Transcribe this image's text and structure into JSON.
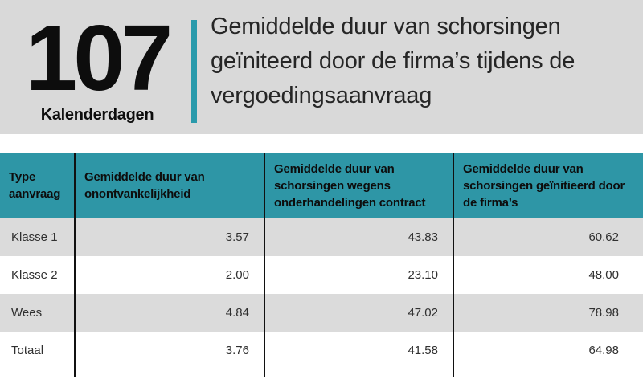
{
  "banner": {
    "stat_value": "107",
    "stat_label": "Kalenderdagen",
    "title": "Gemiddelde duur van schorsingen geïniteerd door de firma’s tijdens de vergoedingsaanvraag"
  },
  "colors": {
    "teal_accent": "#2a9aab",
    "header_teal": "#2e96a6",
    "banner_gray": "#d9d9d9",
    "row_gray": "#dbdbdb",
    "divider_black": "#111111",
    "text_dark": "#0d0d0d"
  },
  "table": {
    "columns": [
      "Type aanvraag",
      "Gemiddelde duur van onontvankelijkheid",
      "Gemiddelde duur van schorsingen wegens onderhandelingen contract",
      "Gemiddelde duur van schorsingen geïnitieerd door de firma’s"
    ],
    "rows": [
      {
        "label": "Klasse 1",
        "values": [
          "3.57",
          "43.83",
          "60.62"
        ]
      },
      {
        "label": "Klasse 2",
        "values": [
          "2.00",
          "23.10",
          "48.00"
        ]
      },
      {
        "label": "Wees",
        "values": [
          "4.84",
          "47.02",
          "78.98"
        ]
      },
      {
        "label": "Totaal",
        "values": [
          "3.76",
          "41.58",
          "64.98"
        ]
      }
    ]
  },
  "chart_data": {
    "type": "table",
    "title": "Gemiddelde duur van schorsingen geïniteerd door de firma’s tijdens de vergoedingsaanvraag",
    "stat": {
      "value": 107,
      "label": "Kalenderdagen"
    },
    "columns": [
      "Type aanvraag",
      "Gemiddelde duur van onontvankelijkheid",
      "Gemiddelde duur van schorsingen wegens onderhandelingen contract",
      "Gemiddelde duur van schorsingen geïnitieerd door de firma’s"
    ],
    "rows": [
      [
        "Klasse 1",
        3.57,
        43.83,
        60.62
      ],
      [
        "Klasse 2",
        2.0,
        23.1,
        48.0
      ],
      [
        "Wees",
        4.84,
        47.02,
        78.98
      ],
      [
        "Totaal",
        3.76,
        41.58,
        64.98
      ]
    ]
  }
}
